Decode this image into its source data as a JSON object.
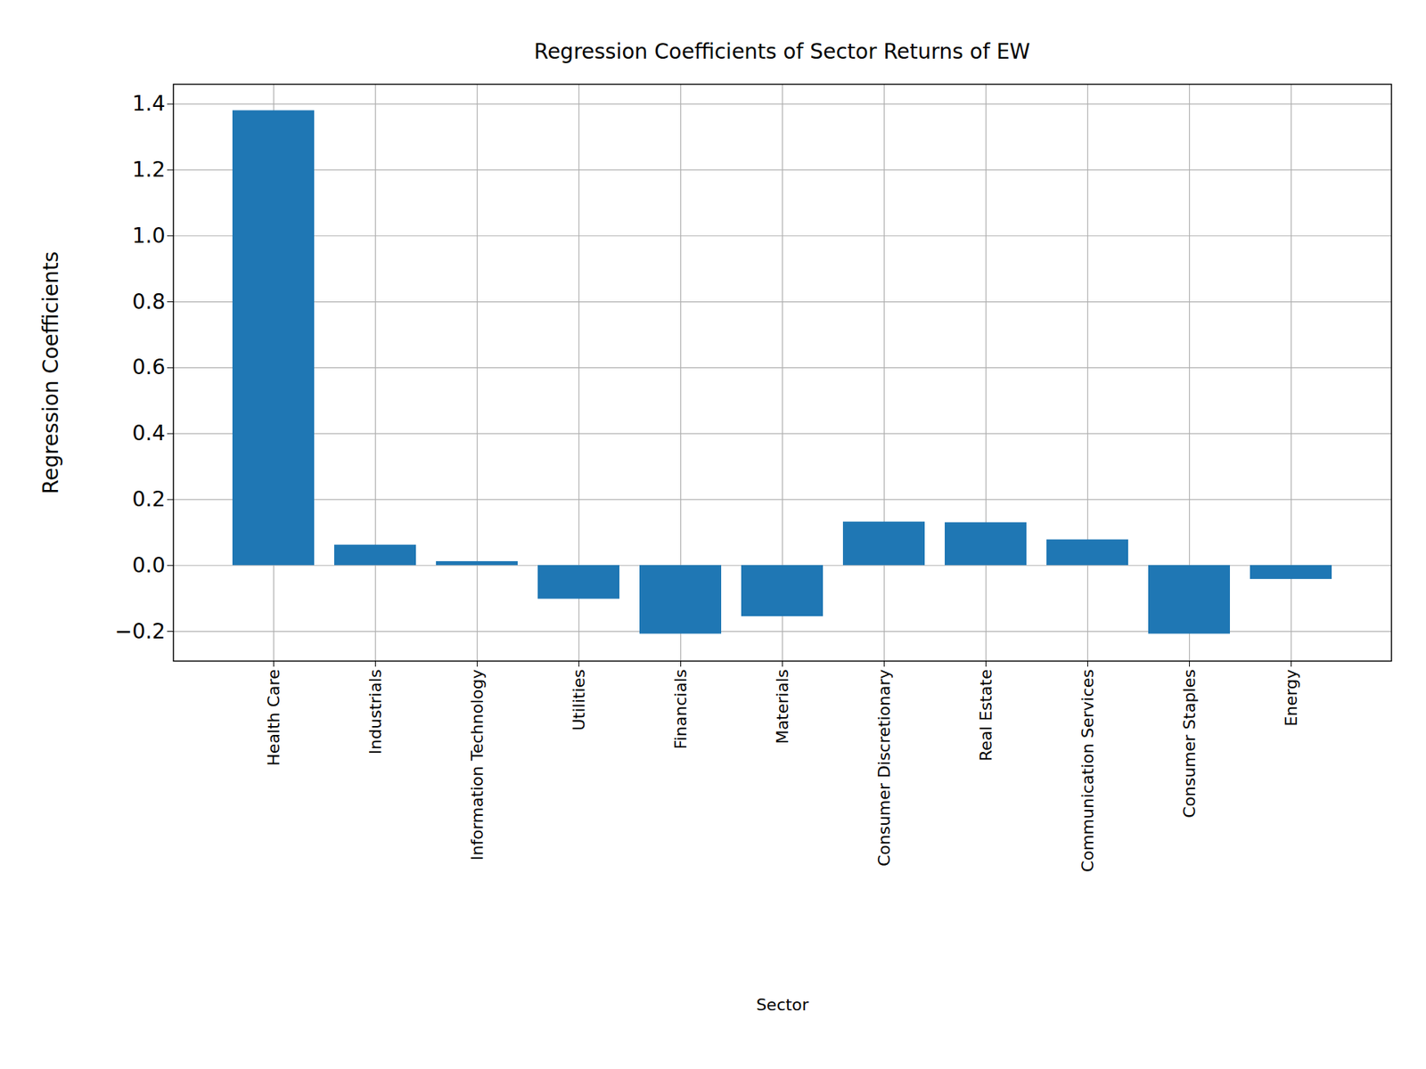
{
  "chart_data": {
    "type": "bar",
    "title": "Regression Coefficients of Sector Returns of EW",
    "x_label": "Sector",
    "y_label": "Regression Coefficients",
    "categories": [
      "Health Care",
      "Industrials",
      "Information Technology",
      "Utilities",
      "Financials",
      "Materials",
      "Consumer Discretionary",
      "Real Estate",
      "Communication Services",
      "Consumer Staples",
      "Energy"
    ],
    "values": [
      1.38,
      0.062,
      0.012,
      -0.102,
      -0.208,
      -0.155,
      0.132,
      0.13,
      0.078,
      -0.208,
      -0.042
    ],
    "color": "#1f77b4",
    "ylim": [
      -0.29,
      1.46
    ],
    "yticks": [
      {
        "value": -0.2,
        "label": "−0.2"
      },
      {
        "value": 0,
        "label": "0.0"
      },
      0.2,
      0.4,
      0.6,
      0.8,
      {
        "value": 1,
        "label": "1.0"
      },
      1.2,
      1.4
    ],
    "grid": true
  }
}
